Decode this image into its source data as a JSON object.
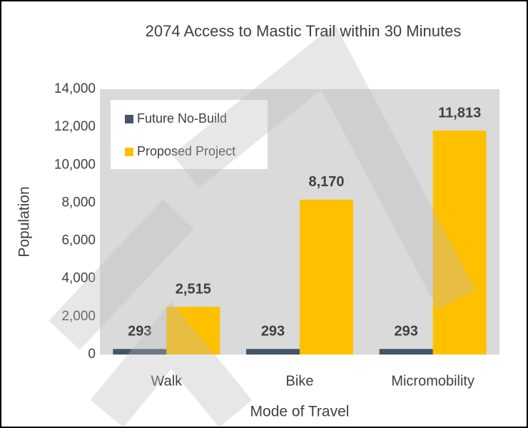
{
  "chart_data": {
    "type": "bar",
    "title": "2074 Access to Mastic Trail within 30 Minutes",
    "x_label": "Mode of Travel",
    "y_label": "Population",
    "categories": [
      "Walk",
      "Bike",
      "Micromobility"
    ],
    "series": [
      {
        "name": "Future No-Build",
        "color": "#44546a",
        "values": [
          293,
          293,
          293
        ],
        "value_labels": [
          "293",
          "293",
          "293"
        ]
      },
      {
        "name": "Proposed Project",
        "color": "#ffc000",
        "values": [
          2515,
          8170,
          11813
        ],
        "value_labels": [
          "2,515",
          "8,170",
          "11,813"
        ]
      }
    ],
    "ylim": [
      0,
      14000
    ],
    "yticks": [
      0,
      {
        "value": 2000,
        "label": "2,000"
      },
      {
        "value": 4000,
        "label": "4,000"
      },
      {
        "value": 6000,
        "label": "6,000"
      },
      {
        "value": 8000,
        "label": "8,000"
      },
      {
        "value": 10000,
        "label": "10,000"
      },
      {
        "value": 12000,
        "label": "12,000"
      },
      {
        "value": 14000,
        "label": "14,000"
      }
    ],
    "legend": "upper-left",
    "plot_background": "#dadada"
  }
}
